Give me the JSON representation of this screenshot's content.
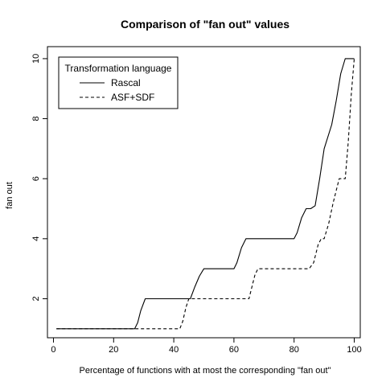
{
  "chart_data": {
    "type": "line",
    "title": "Comparison of \"fan out\" values",
    "xlabel": "Percentage of functions with at most the corresponding \"fan out\"",
    "ylabel": "fan out",
    "xlim": [
      -2,
      102
    ],
    "ylim": [
      0.7,
      10.4
    ],
    "x_ticks": [
      0,
      20,
      40,
      60,
      80,
      100
    ],
    "y_ticks": [
      2,
      4,
      6,
      8,
      10
    ],
    "grid": false,
    "legend": {
      "title": "Transformation language",
      "placement": "top-left"
    },
    "series": [
      {
        "name": "Rascal",
        "line_style": "solid",
        "color": "#000000",
        "points": [
          [
            1,
            1
          ],
          [
            27,
            1
          ],
          [
            28,
            1.2
          ],
          [
            29,
            1.6
          ],
          [
            30.5,
            2
          ],
          [
            45.5,
            2
          ],
          [
            47,
            2.4
          ],
          [
            48.5,
            2.75
          ],
          [
            50,
            3
          ],
          [
            60,
            3
          ],
          [
            61,
            3.2
          ],
          [
            62.5,
            3.7
          ],
          [
            64,
            4
          ],
          [
            80,
            4
          ],
          [
            81,
            4.2
          ],
          [
            82.5,
            4.7
          ],
          [
            84,
            5
          ],
          [
            85.5,
            5
          ],
          [
            87,
            5.1
          ],
          [
            88.5,
            6
          ],
          [
            90,
            7
          ],
          [
            92.5,
            7.8
          ],
          [
            94,
            8.6
          ],
          [
            95.5,
            9.5
          ],
          [
            97,
            10
          ],
          [
            100,
            10
          ]
        ]
      },
      {
        "name": "ASF+SDF",
        "line_style": "dashed",
        "color": "#000000",
        "points": [
          [
            1,
            1
          ],
          [
            42,
            1
          ],
          [
            43,
            1.25
          ],
          [
            44,
            1.7
          ],
          [
            45,
            2
          ],
          [
            65,
            2
          ],
          [
            66,
            2.4
          ],
          [
            67,
            2.8
          ],
          [
            68,
            3
          ],
          [
            85,
            3
          ],
          [
            86.5,
            3.2
          ],
          [
            88,
            3.8
          ],
          [
            89,
            4
          ],
          [
            90,
            4
          ],
          [
            91.5,
            4.5
          ],
          [
            93,
            5.2
          ],
          [
            95,
            6
          ],
          [
            97,
            6
          ],
          [
            98,
            7.2
          ],
          [
            99,
            8.8
          ],
          [
            100,
            10
          ]
        ]
      }
    ]
  }
}
